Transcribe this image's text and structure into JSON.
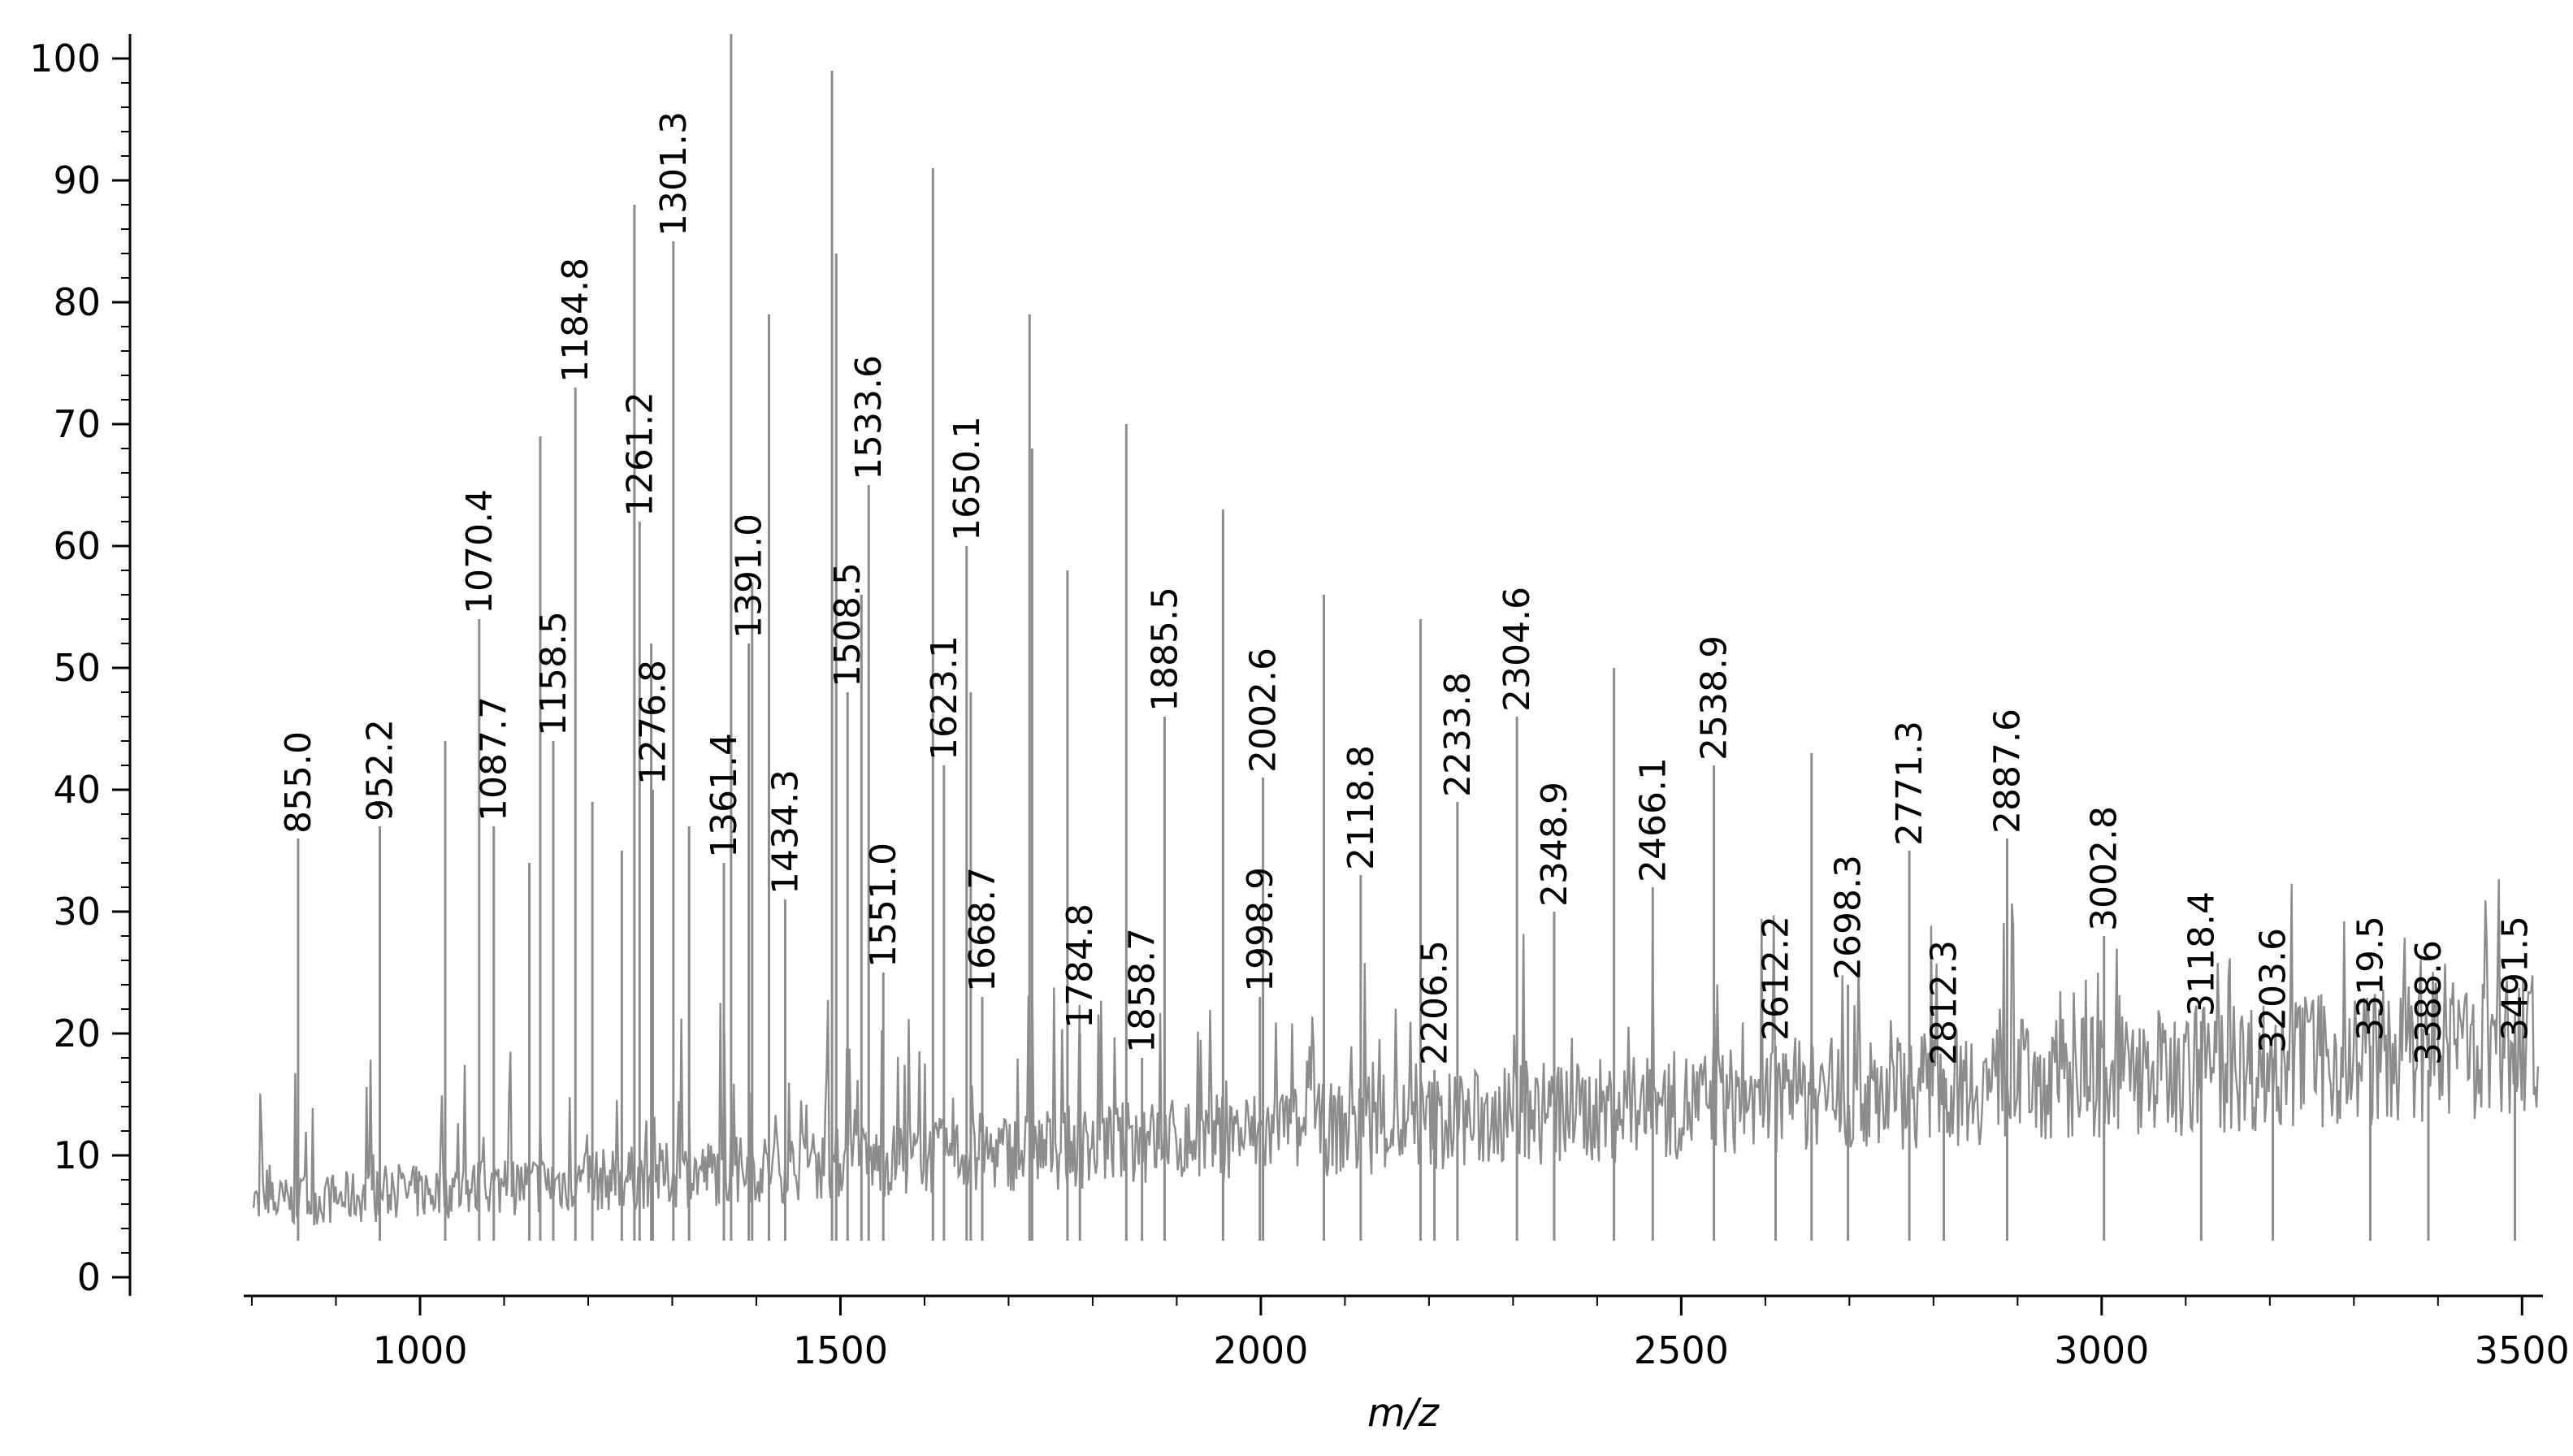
{
  "chart_data": {
    "type": "line",
    "xlabel": "m/z",
    "ylabel": "",
    "xlim": [
      800,
      3520
    ],
    "ylim": [
      0,
      102
    ],
    "x_ticks": [
      1000,
      1500,
      2000,
      2500,
      3000,
      3500
    ],
    "y_ticks": [
      0,
      10,
      20,
      30,
      40,
      50,
      60,
      70,
      80,
      90,
      100
    ],
    "grid": false,
    "series": [
      {
        "values": [
          [
            855.0,
            36
          ],
          [
            952.2,
            37
          ],
          [
            1070.4,
            54
          ],
          [
            1087.7,
            37
          ],
          [
            1158.5,
            44
          ],
          [
            1184.8,
            73
          ],
          [
            1261.2,
            62
          ],
          [
            1276.8,
            40
          ],
          [
            1301.3,
            85
          ],
          [
            1361.4,
            34
          ],
          [
            1391.0,
            52
          ],
          [
            1434.3,
            31
          ],
          [
            1508.5,
            48
          ],
          [
            1533.6,
            65
          ],
          [
            1551.0,
            25
          ],
          [
            1623.1,
            42
          ],
          [
            1650.1,
            60
          ],
          [
            1668.7,
            23
          ],
          [
            1784.8,
            20
          ],
          [
            1858.7,
            18
          ],
          [
            1885.5,
            46
          ],
          [
            1998.9,
            23
          ],
          [
            2002.6,
            41
          ],
          [
            2118.8,
            33
          ],
          [
            2206.5,
            17
          ],
          [
            2233.8,
            39
          ],
          [
            2304.6,
            46
          ],
          [
            2348.9,
            30
          ],
          [
            2466.1,
            32
          ],
          [
            2538.9,
            42
          ],
          [
            2612.2,
            19
          ],
          [
            2698.3,
            24
          ],
          [
            2771.3,
            35
          ],
          [
            2812.3,
            17
          ],
          [
            2887.6,
            36
          ],
          [
            3002.8,
            28
          ],
          [
            3118.4,
            21
          ],
          [
            3203.6,
            18
          ],
          [
            3319.5,
            19
          ],
          [
            3388.6,
            17
          ],
          [
            3491.5,
            19
          ]
        ]
      },
      {
        "values": [
          [
            1143,
            69
          ],
          [
            1255,
            88
          ],
          [
            1275,
            52
          ],
          [
            1370,
            102
          ],
          [
            1395,
            57
          ],
          [
            1415,
            79
          ],
          [
            1490,
            99
          ],
          [
            1495,
            84
          ],
          [
            1525,
            56
          ],
          [
            1610,
            91
          ],
          [
            1655,
            48
          ],
          [
            1725,
            79
          ],
          [
            1728,
            68
          ],
          [
            1770,
            58
          ],
          [
            1840,
            70
          ],
          [
            1955,
            63
          ],
          [
            2075,
            56
          ],
          [
            2190,
            54
          ],
          [
            2420,
            50
          ],
          [
            2655,
            43
          ],
          [
            1030,
            44
          ],
          [
            1205,
            39
          ],
          [
            1320,
            37
          ],
          [
            1130,
            34
          ],
          [
            1240,
            35
          ]
        ]
      }
    ],
    "annotations": [
      "855.0",
      "952.2",
      "1070.4",
      "1087.7",
      "1158.5",
      "1184.8",
      "1261.2",
      "1276.8",
      "1301.3",
      "1361.4",
      "1391.0",
      "1434.3",
      "1508.5",
      "1533.6",
      "1551.0",
      "1623.1",
      "1650.1",
      "1668.7",
      "1784.8",
      "1858.7",
      "1885.5",
      "1998.9",
      "2002.6",
      "2118.8",
      "2206.5",
      "2233.8",
      "2304.6",
      "2348.9",
      "2466.1",
      "2538.9",
      "2612.2",
      "2698.3",
      "2771.3",
      "2812.3",
      "2887.6",
      "3002.8",
      "3118.4",
      "3203.6",
      "3319.5",
      "3388.6",
      "3491.5"
    ]
  }
}
